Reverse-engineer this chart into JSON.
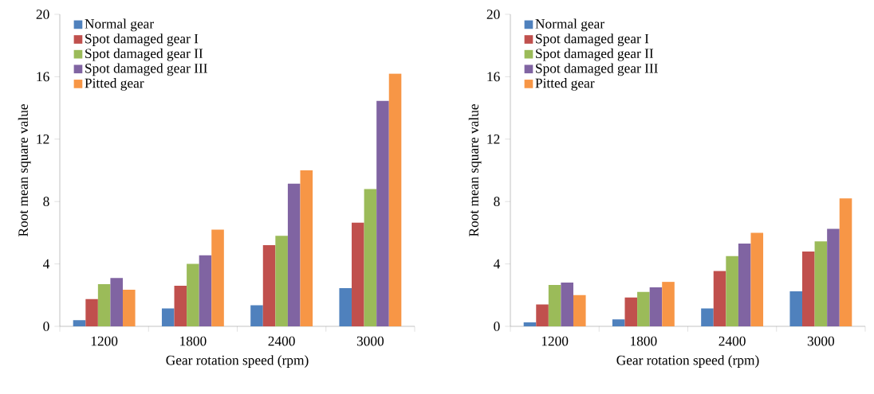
{
  "chart_data": [
    {
      "type": "bar",
      "xlabel": "Gear rotation speed (rpm)",
      "ylabel": "Root mean square value",
      "categories": [
        "1200",
        "1800",
        "2400",
        "3000"
      ],
      "ylim": [
        0,
        20
      ],
      "yticks": [
        0,
        4,
        8,
        12,
        16,
        20
      ],
      "legend": "top left",
      "grid": false,
      "series": [
        {
          "name": "Normal gear",
          "color": "#4f81bd",
          "values": [
            0.4,
            1.15,
            1.35,
            2.45
          ]
        },
        {
          "name": "Spot damaged gear I",
          "color": "#c0504d",
          "values": [
            1.75,
            2.6,
            5.2,
            6.65
          ]
        },
        {
          "name": "Spot damaged gear II",
          "color": "#9bbb59",
          "values": [
            2.7,
            4.0,
            5.8,
            8.8
          ]
        },
        {
          "name": "Spot damaged gear III",
          "color": "#8064a2",
          "values": [
            3.1,
            4.55,
            9.15,
            14.45
          ]
        },
        {
          "name": "Pitted gear",
          "color": "#f79646",
          "values": [
            2.35,
            6.2,
            10.0,
            16.2
          ]
        }
      ]
    },
    {
      "type": "bar",
      "xlabel": "Gear rotation speed (rpm)",
      "ylabel": "Root mean square value",
      "categories": [
        "1200",
        "1800",
        "2400",
        "3000"
      ],
      "ylim": [
        0,
        20
      ],
      "yticks": [
        0,
        4,
        8,
        12,
        16,
        20
      ],
      "legend": "top left",
      "grid": false,
      "series": [
        {
          "name": "Normal gear",
          "color": "#4f81bd",
          "values": [
            0.25,
            0.45,
            1.15,
            2.25
          ]
        },
        {
          "name": "Spot damaged gear I",
          "color": "#c0504d",
          "values": [
            1.4,
            1.85,
            3.55,
            4.8
          ]
        },
        {
          "name": "Spot damaged gear II",
          "color": "#9bbb59",
          "values": [
            2.65,
            2.2,
            4.5,
            5.45
          ]
        },
        {
          "name": "Spot damaged gear III",
          "color": "#8064a2",
          "values": [
            2.8,
            2.5,
            5.3,
            6.25
          ]
        },
        {
          "name": "Pitted gear",
          "color": "#f79646",
          "values": [
            2.0,
            2.85,
            6.0,
            8.2
          ]
        }
      ]
    }
  ]
}
